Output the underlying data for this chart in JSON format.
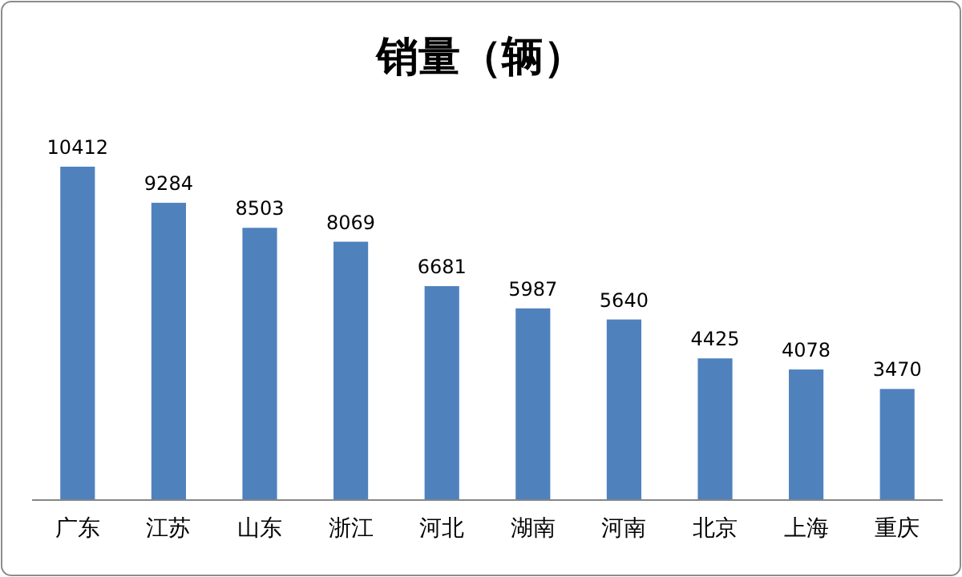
{
  "chart_data": {
    "type": "bar",
    "title": "销量（辆）",
    "categories": [
      "广东",
      "江苏",
      "山东",
      "浙江",
      "河北",
      "湖南",
      "河南",
      "北京",
      "上海",
      "重庆"
    ],
    "values": [
      10412,
      9284,
      8503,
      8069,
      6681,
      5987,
      5640,
      4425,
      4078,
      3470
    ],
    "color": "#4f81bd",
    "data_labels": true
  }
}
